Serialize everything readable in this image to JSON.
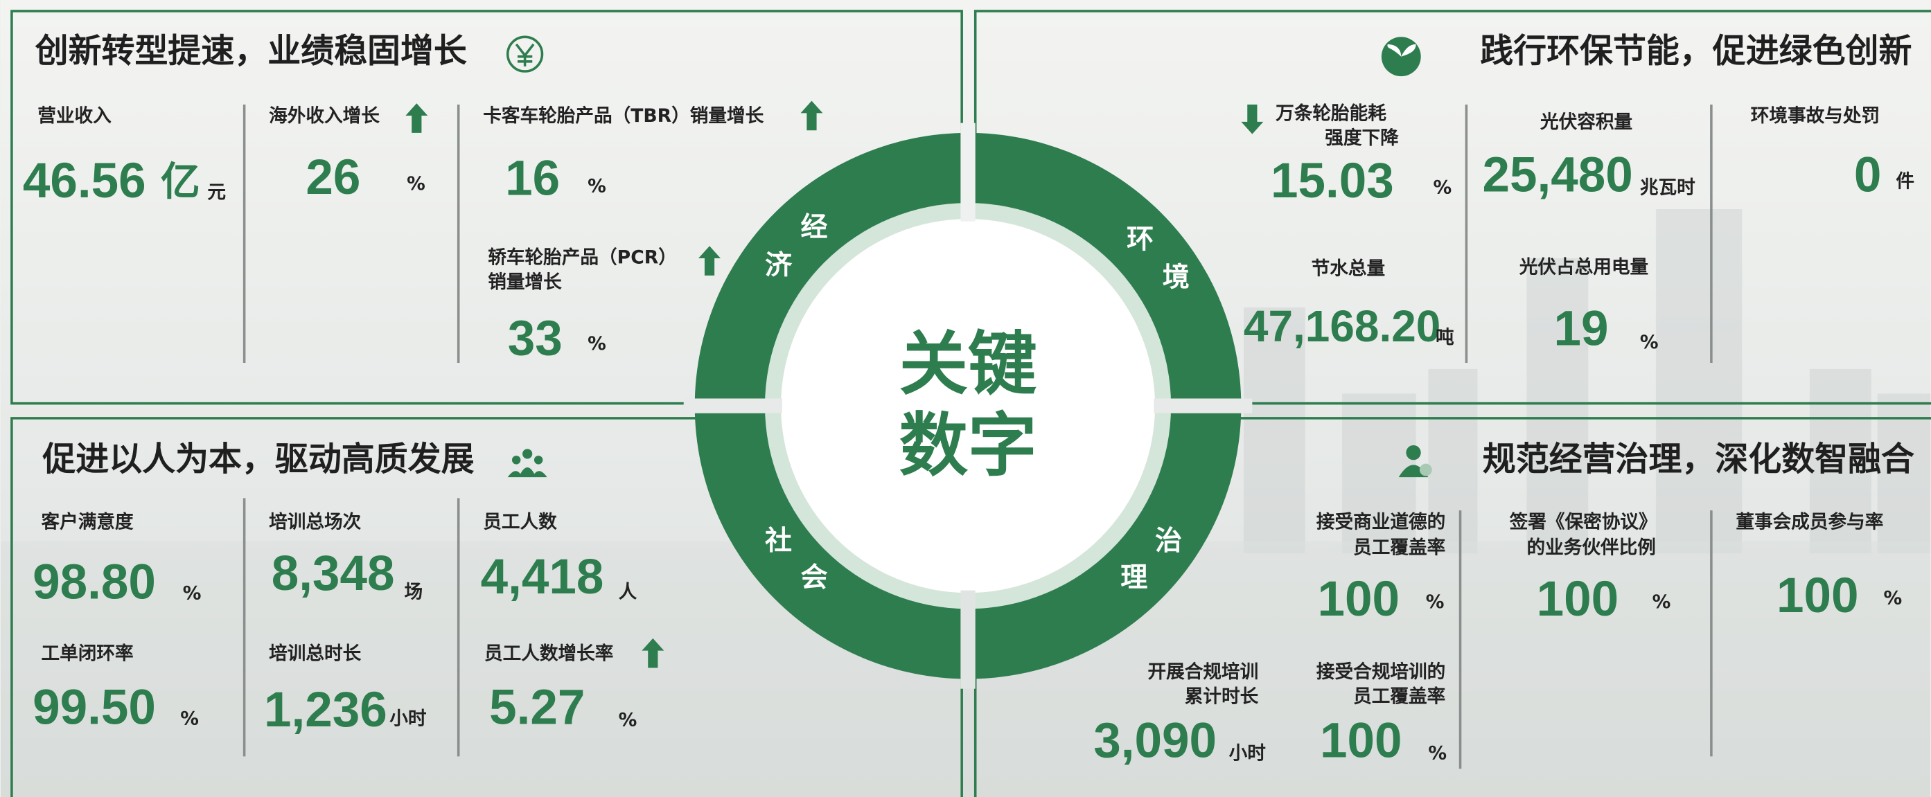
{
  "sections": [
    {
      "title": "创新转型提速，业绩稳固增长",
      "items": [
        {
          "label": [
            "营业收入"
          ],
          "value": "46.56",
          "unit_large": "亿",
          "unit": "元"
        },
        {
          "label": [
            "海外收入增长"
          ],
          "value": "26",
          "unit": "%"
        },
        {
          "label": [
            "卡客车轮胎产品（TBR）销量增长"
          ],
          "value": "16",
          "unit": "%"
        },
        {
          "label": [
            "轿车轮胎产品（PCR）",
            "销量增长"
          ],
          "value": "33",
          "unit": "%"
        }
      ]
    },
    {
      "title": "践行环保节能，促进绿色创新",
      "items": [
        {
          "label": [
            "万条轮胎能耗",
            "强度下降"
          ],
          "value": "15.03",
          "unit": "%"
        },
        {
          "label": [
            "节水总量"
          ],
          "value": "47,168.20",
          "unit": "吨"
        },
        {
          "label": [
            "光伏容积量"
          ],
          "value": "25,480",
          "unit": "兆瓦时"
        },
        {
          "label": [
            "光伏占总用电量"
          ],
          "value": "19",
          "unit": "%"
        },
        {
          "label": [
            "环境事故与处罚"
          ],
          "value": "0",
          "unit": "件"
        }
      ]
    },
    {
      "title": "促进以人为本，驱动高质发展",
      "items": [
        {
          "label": [
            "客户满意度"
          ],
          "value": "98.80",
          "unit": "%"
        },
        {
          "label": [
            "工单闭环率"
          ],
          "value": "99.50",
          "unit": "%"
        },
        {
          "label": [
            "培训总场次"
          ],
          "value": "8,348",
          "unit": "场"
        },
        {
          "label": [
            "培训总时长"
          ],
          "value": "1,236",
          "unit": "小时"
        },
        {
          "label": [
            "员工人数"
          ],
          "value": "4,418",
          "unit": "人"
        },
        {
          "label": [
            "员工人数增长率"
          ],
          "value": "5.27",
          "unit": "%"
        }
      ]
    },
    {
      "title": "规范经营治理，深化数智融合",
      "items": [
        {
          "label": [
            "接受商业道德的",
            "员工覆盖率"
          ],
          "value": "100",
          "unit": "%"
        },
        {
          "label": [
            "开展合规培训",
            "累计时长"
          ],
          "value": "3,090",
          "unit": "小时"
        },
        {
          "label": [
            "接受合规培训的",
            "员工覆盖率"
          ],
          "value": "100",
          "unit": "%"
        },
        {
          "label": [
            "签署《保密协议》",
            "的业务伙伴比例"
          ],
          "value": "100",
          "unit": "%"
        },
        {
          "label": [
            "董事会成员参与率"
          ],
          "value": "100",
          "unit": "%"
        }
      ]
    }
  ],
  "ring": [
    {
      "chars": [
        "经",
        "济"
      ]
    },
    {
      "chars": [
        "环",
        "境"
      ]
    },
    {
      "chars": [
        "社",
        "会"
      ]
    },
    {
      "chars": [
        "治",
        "理"
      ]
    }
  ],
  "center": {
    "lines": [
      "关键",
      "数字"
    ]
  }
}
